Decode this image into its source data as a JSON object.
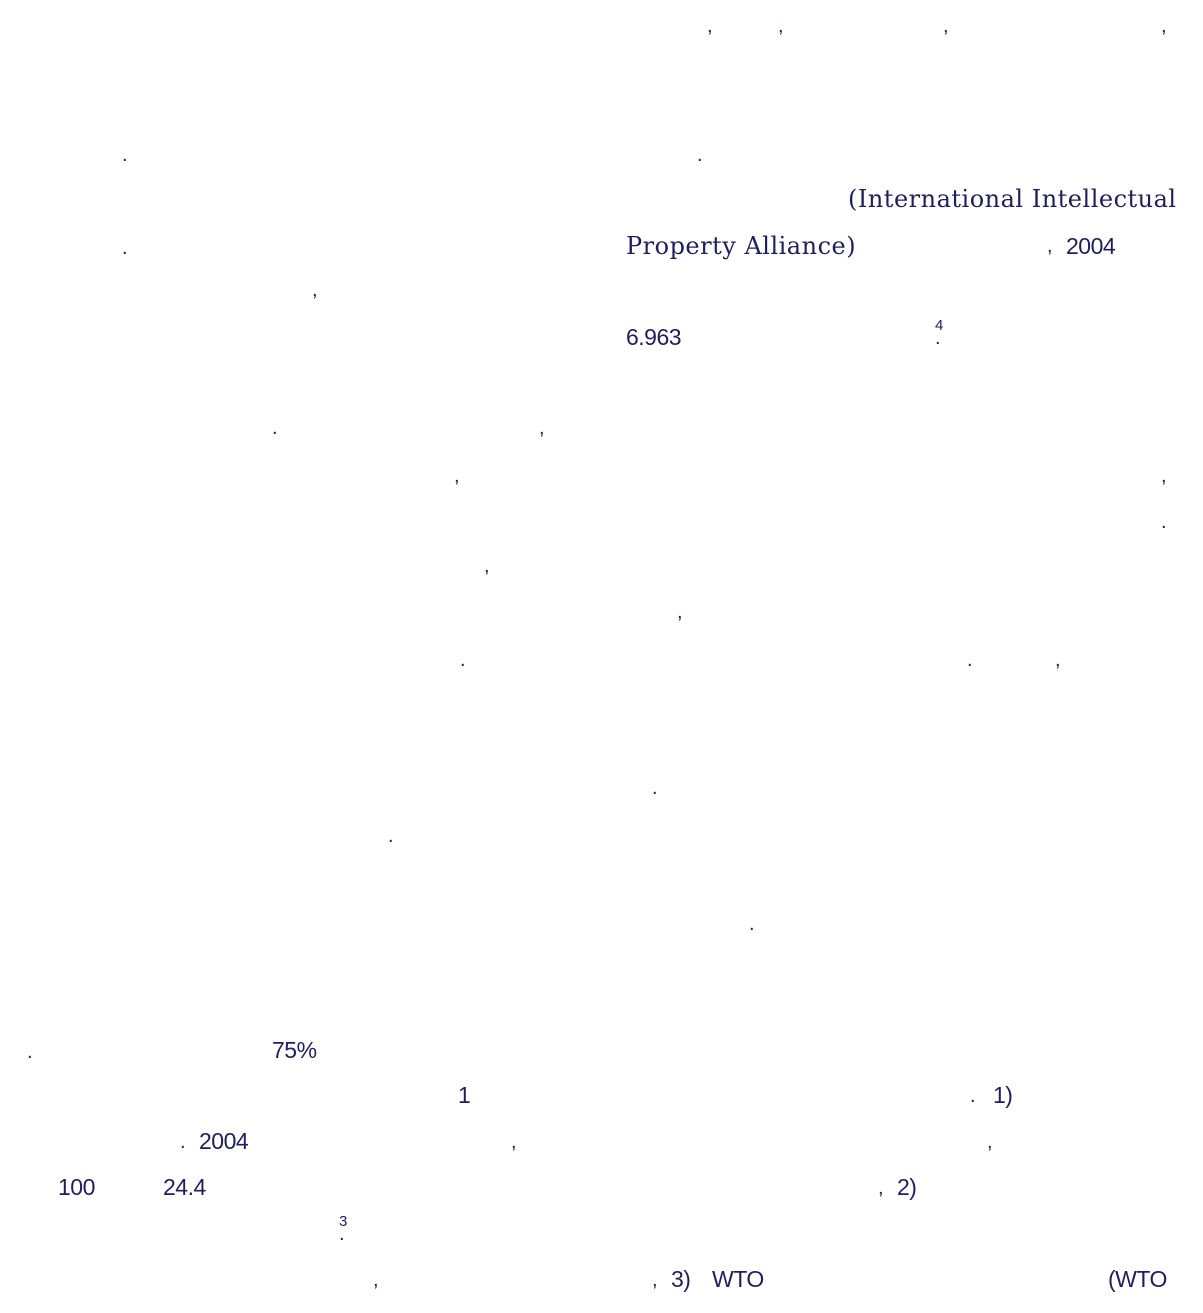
{
  "text": {
    "intl_ipa_line1": "(International Intellectual",
    "intl_ipa_line2": "Property Alliance)",
    "year_2004_a": "2004",
    "amount_6963": "6.963",
    "fn_4": "4",
    "pct_75": "75%",
    "item_1": "1",
    "item_1_paren": "1)",
    "year_2004_b": "2004",
    "num_100": "100",
    "num_24_4": "24.4",
    "item_2_paren": "2)",
    "fn_3": "3",
    "item_3_paren": "3)",
    "wto_a": "WTO",
    "wto_b": "(WTO"
  }
}
